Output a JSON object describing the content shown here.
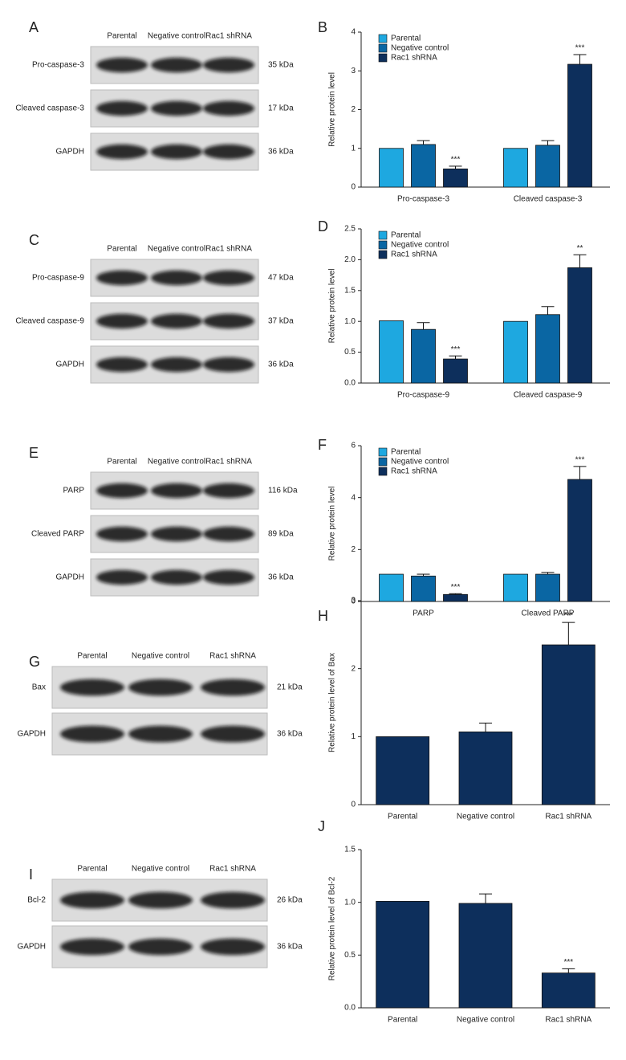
{
  "blots": [
    {
      "panel": "A",
      "columns": [
        "Parental",
        "Negative control",
        "Rac1 shRNA"
      ],
      "rows": [
        {
          "label": "Pro-caspase-3",
          "kda": "35 kDa"
        },
        {
          "label": "Cleaved caspase-3",
          "kda": "17 kDa"
        },
        {
          "label": "GAPDH",
          "kda": "36 kDa"
        }
      ]
    },
    {
      "panel": "C",
      "columns": [
        "Parental",
        "Negative control",
        "Rac1 shRNA"
      ],
      "rows": [
        {
          "label": "Pro-caspase-9",
          "kda": "47 kDa"
        },
        {
          "label": "Cleaved caspase-9",
          "kda": "37 kDa"
        },
        {
          "label": "GAPDH",
          "kda": "36 kDa"
        }
      ]
    },
    {
      "panel": "E",
      "columns": [
        "Parental",
        "Negative control",
        "Rac1 shRNA"
      ],
      "rows": [
        {
          "label": "PARP",
          "kda": "116 kDa"
        },
        {
          "label": "Cleaved PARP",
          "kda": "89 kDa"
        },
        {
          "label": "GAPDH",
          "kda": "36 kDa"
        }
      ]
    },
    {
      "panel": "G",
      "columns": [
        "Parental",
        "Negative control",
        "Rac1 shRNA"
      ],
      "rows": [
        {
          "label": "Bax",
          "kda": "21 kDa"
        },
        {
          "label": "GAPDH",
          "kda": "36 kDa"
        }
      ]
    },
    {
      "panel": "I",
      "columns": [
        "Parental",
        "Negative control",
        "Rac1 shRNA"
      ],
      "rows": [
        {
          "label": "Bcl-2",
          "kda": "26 kDa"
        },
        {
          "label": "GAPDH",
          "kda": "36 kDa"
        }
      ]
    }
  ],
  "chart_data": [
    {
      "type": "bar",
      "panel": "B",
      "ylabel": "Relative protein level",
      "categories": [
        "Pro-caspase-3",
        "Cleaved caspase-3"
      ],
      "ylim": [
        0,
        4
      ],
      "yticks": [
        0,
        1,
        2,
        3,
        4
      ],
      "legend": "top-left",
      "series": [
        {
          "name": "Parental",
          "color": "#1ea8e0",
          "values": [
            1.0,
            1.0
          ]
        },
        {
          "name": "Negative control",
          "color": "#0a66a3",
          "values": [
            1.1,
            1.08
          ],
          "errors": [
            0.1,
            0.12
          ]
        },
        {
          "name": "Rac1 shRNA",
          "color": "#0d2f5c",
          "values": [
            0.47,
            3.17
          ],
          "errors": [
            0.07,
            0.25
          ],
          "stars": [
            "***",
            "***"
          ]
        }
      ]
    },
    {
      "type": "bar",
      "panel": "D",
      "ylabel": "Relative protein level",
      "categories": [
        "Pro-caspase-9",
        "Cleaved caspase-9"
      ],
      "ylim": [
        0,
        2.5
      ],
      "yticks": [
        {
          "value": 0,
          "label": "0.0"
        },
        0.5,
        {
          "value": 1,
          "label": "1.0"
        },
        1.5,
        {
          "value": 2,
          "label": "2.0"
        },
        2.5
      ],
      "legend": "top-left",
      "series": [
        {
          "name": "Parental",
          "color": "#1ea8e0",
          "values": [
            1.01,
            1.0
          ]
        },
        {
          "name": "Negative control",
          "color": "#0a66a3",
          "values": [
            0.87,
            1.11
          ],
          "errors": [
            0.11,
            0.13
          ]
        },
        {
          "name": "Rac1 shRNA",
          "color": "#0d2f5c",
          "values": [
            0.39,
            1.87
          ],
          "errors": [
            0.05,
            0.21
          ],
          "stars": [
            "***",
            "**"
          ]
        }
      ]
    },
    {
      "type": "bar",
      "panel": "F",
      "ylabel": "Relative protein level",
      "categories": [
        "PARP",
        "Cleaved PARP"
      ],
      "ylim": [
        0,
        6
      ],
      "yticks": [
        0,
        2,
        4,
        6
      ],
      "legend": "top-left",
      "series": [
        {
          "name": "Parental",
          "color": "#1ea8e0",
          "values": [
            1.05,
            1.05
          ]
        },
        {
          "name": "Negative control",
          "color": "#0a66a3",
          "values": [
            0.98,
            1.05
          ],
          "errors": [
            0.07,
            0.07
          ]
        },
        {
          "name": "Rac1 shRNA",
          "color": "#0d2f5c",
          "values": [
            0.27,
            4.7
          ],
          "errors": [
            0.03,
            0.5
          ],
          "stars": [
            "***",
            "***"
          ]
        }
      ]
    },
    {
      "type": "bar",
      "panel": "H",
      "ylabel": "Relative protein level of Bax",
      "categories": [
        "Parental",
        "Negative control",
        "Rac1 shRNA"
      ],
      "ylim": [
        0,
        3
      ],
      "yticks": [
        0,
        1,
        2,
        3
      ],
      "series": [
        {
          "color": "#0d2f5c",
          "values": [
            1.0,
            1.07,
            2.35
          ],
          "errors": [
            null,
            0.13,
            0.33
          ],
          "stars": [
            null,
            null,
            "***"
          ]
        }
      ]
    },
    {
      "type": "bar",
      "panel": "J",
      "ylabel": "Relative protein level of Bcl-2",
      "categories": [
        "Parental",
        "Negative control",
        "Rac1 shRNA"
      ],
      "ylim": [
        0,
        1.5
      ],
      "yticks": [
        {
          "value": 0,
          "label": "0.0"
        },
        0.5,
        {
          "value": 1,
          "label": "1.0"
        },
        1.5
      ],
      "series": [
        {
          "color": "#0d2f5c",
          "values": [
            1.01,
            0.99,
            0.33
          ],
          "errors": [
            null,
            0.09,
            0.04
          ],
          "stars": [
            null,
            null,
            "***"
          ]
        }
      ]
    }
  ]
}
